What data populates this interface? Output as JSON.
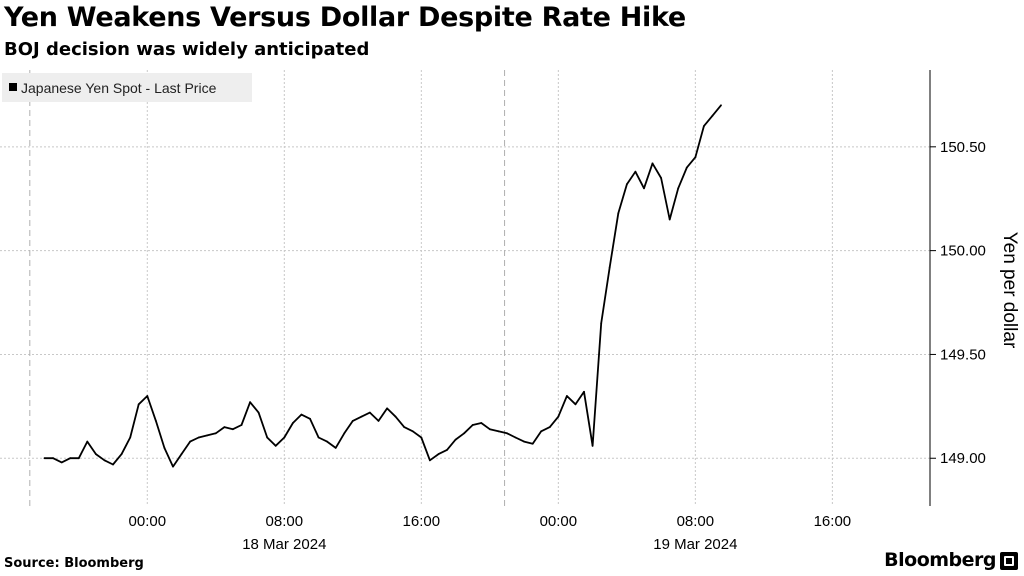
{
  "header": {
    "title": "Yen Weakens Versus Dollar Despite Rate Hike",
    "subtitle": "BOJ decision was widely anticipated"
  },
  "footer": {
    "source": "Source:  Bloomberg",
    "brand": "Bloomberg"
  },
  "colors": {
    "line": "#000000",
    "grid": "#c8c8c8",
    "legend_bg": "#eeeeee",
    "axis": "#000000"
  },
  "chart_data": {
    "type": "line",
    "series": [
      {
        "name": "Japanese Yen Spot - Last Price",
        "x_hours": [
          -6.0,
          -5.5,
          -5.0,
          -4.5,
          -4.0,
          -3.5,
          -3.0,
          -2.5,
          -2.0,
          -1.5,
          -1.0,
          -0.5,
          0.0,
          0.5,
          1.0,
          1.5,
          2.0,
          2.5,
          3.0,
          3.5,
          4.0,
          4.5,
          5.0,
          5.5,
          6.0,
          6.5,
          7.0,
          7.5,
          8.0,
          8.5,
          9.0,
          9.5,
          10.0,
          10.5,
          11.0,
          11.5,
          12.0,
          12.5,
          13.0,
          13.5,
          14.0,
          14.5,
          15.0,
          15.5,
          16.0,
          16.5,
          17.0,
          17.5,
          18.0,
          18.5,
          19.0,
          19.5,
          20.0,
          20.5,
          21.0,
          21.5,
          22.0,
          22.5,
          23.0,
          23.5,
          24.0,
          24.5,
          25.0,
          25.5,
          26.0,
          26.5,
          27.0,
          27.5,
          28.0,
          28.5,
          29.0,
          29.5,
          30.0,
          30.5,
          31.0,
          31.5,
          32.0,
          32.5,
          33.0,
          33.5
        ],
        "values": [
          149.0,
          149.0,
          148.98,
          149.0,
          149.0,
          149.08,
          149.02,
          148.99,
          148.97,
          149.02,
          149.1,
          149.26,
          149.3,
          149.18,
          149.05,
          148.96,
          149.02,
          149.08,
          149.1,
          149.11,
          149.12,
          149.15,
          149.14,
          149.16,
          149.27,
          149.22,
          149.1,
          149.06,
          149.1,
          149.17,
          149.21,
          149.19,
          149.1,
          149.08,
          149.05,
          149.12,
          149.18,
          149.2,
          149.22,
          149.18,
          149.24,
          149.2,
          149.15,
          149.13,
          149.1,
          148.99,
          149.02,
          149.04,
          149.09,
          149.12,
          149.16,
          149.17,
          149.14,
          149.13,
          149.12,
          149.1,
          149.08,
          149.07,
          149.13,
          149.15,
          149.2,
          149.3,
          149.26,
          149.32,
          149.06,
          149.65,
          149.92,
          150.18,
          150.32,
          150.38,
          150.3,
          150.42,
          150.35,
          150.15,
          150.3,
          150.4,
          150.45,
          150.6,
          150.65,
          150.7
        ],
        "xlabel_hint": "hours relative to 00:00 18 Mar 2024"
      }
    ],
    "title": "Yen Weakens Versus Dollar Despite Rate Hike",
    "subtitle": "BOJ decision was widely anticipated",
    "xlabel": "",
    "ylabel": "Yen per dollar",
    "ylim": [
      148.77,
      150.87
    ],
    "yticks": [
      149.0,
      149.5,
      150.0,
      150.5
    ],
    "ytick_labels": [
      "149.00",
      "149.50",
      "150.00",
      "150.50"
    ],
    "xlim_hours": [
      -8.6,
      45.7
    ],
    "xticks_hours": [
      0,
      8,
      16,
      24,
      32,
      40
    ],
    "xtick_labels": [
      "00:00",
      "08:00",
      "16:00",
      "00:00",
      "08:00",
      "16:00"
    ],
    "date_labels": [
      {
        "hour": 8,
        "label": "18 Mar 2024"
      },
      {
        "hour": 32,
        "label": "19 Mar 2024"
      }
    ],
    "day_boundaries_hours": [
      -6.86,
      20.86
    ],
    "grid": true,
    "legend": "top-left",
    "y_axis_side": "right"
  }
}
